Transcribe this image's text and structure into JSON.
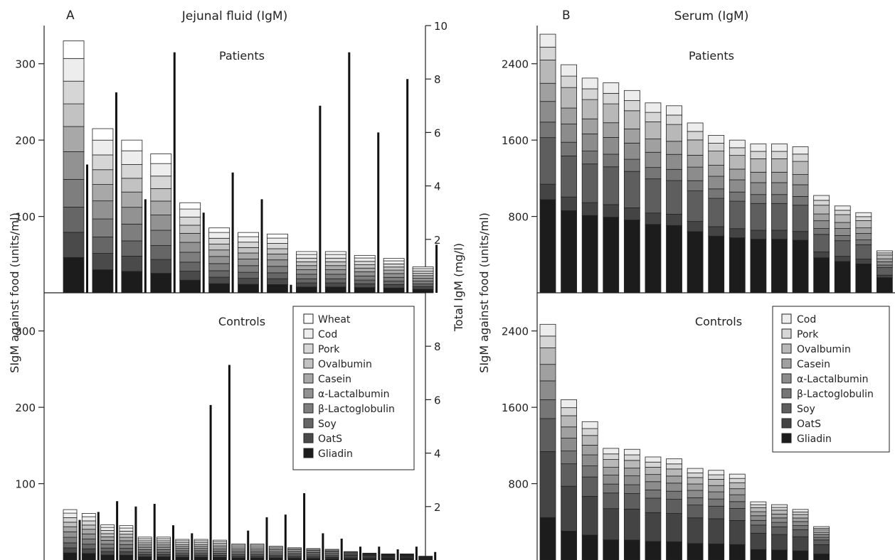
{
  "chart_data": [
    {
      "type": "bar",
      "panel": "A",
      "panel_title": "Jejunal fluid (IgM)",
      "ylabel": "SIgM against food (units/ml)",
      "ylabel2": "Total IgM (mg/l)",
      "subplots": [
        {
          "name": "Patients",
          "ylim": [
            0,
            350
          ],
          "yticks": [
            "100",
            "200",
            "300"
          ],
          "y2lim": [
            0,
            10
          ],
          "y2ticks": [
            "2",
            "4",
            "6",
            "8",
            "10"
          ],
          "stacked_totals": [
            330,
            215,
            200,
            182,
            118,
            85,
            79,
            77,
            54,
            54,
            49,
            45,
            34
          ],
          "total_igm": [
            4.8,
            7.5,
            3.5,
            9.0,
            3.0,
            4.5,
            3.5,
            0.3,
            7.0,
            9.0,
            6.0,
            8.0,
            1.8
          ]
        },
        {
          "name": "Controls",
          "ylim": [
            0,
            350
          ],
          "yticks": [
            "100",
            "200",
            "300"
          ],
          "y2lim": [
            0,
            10
          ],
          "y2ticks": [
            "2",
            "4",
            "6",
            "8"
          ],
          "stacked_totals": [
            66,
            61,
            46,
            45,
            30,
            30,
            27,
            27,
            26,
            21,
            21,
            18,
            16,
            15,
            14,
            11,
            9,
            8,
            8,
            5
          ],
          "total_igm": [
            1.5,
            1.8,
            2.2,
            2.0,
            2.1,
            1.3,
            1.0,
            5.8,
            7.3,
            1.1,
            1.6,
            1.7,
            2.5,
            1.0,
            0.8,
            0.5,
            0.5,
            0.4,
            0.5,
            0.3
          ]
        }
      ],
      "legend": [
        "Wheat",
        "Cod",
        "Pork",
        "Ovalbumin",
        "Casein",
        "α-Lactalbumin",
        "β-Lactoglobulin",
        "Soy",
        "OatS",
        "Gliadin"
      ]
    },
    {
      "type": "bar",
      "panel": "B",
      "panel_title": "Serum (IgM)",
      "ylabel": "SIgM against food (units/ml)",
      "subplots": [
        {
          "name": "Patients",
          "ylim": [
            0,
            2800
          ],
          "yticks": [
            "800",
            "1600",
            "2400"
          ],
          "stacked_totals": [
            2710,
            2390,
            2250,
            2200,
            2120,
            1990,
            1960,
            1780,
            1650,
            1600,
            1560,
            1560,
            1530,
            1020,
            910,
            840,
            440
          ]
        },
        {
          "name": "Controls",
          "ylim": [
            0,
            2800
          ],
          "yticks": [
            "800",
            "1600",
            "2400"
          ],
          "stacked_totals": [
            2470,
            1680,
            1450,
            1170,
            1160,
            1080,
            1060,
            960,
            940,
            900,
            610,
            580,
            530,
            350
          ]
        }
      ],
      "legend": [
        "Cod",
        "Pork",
        "Ovalbumin",
        "Casein",
        "α-Lactalbumin",
        "β-Lactoglobulin",
        "Soy",
        "OatS",
        "Gliadin"
      ]
    }
  ]
}
